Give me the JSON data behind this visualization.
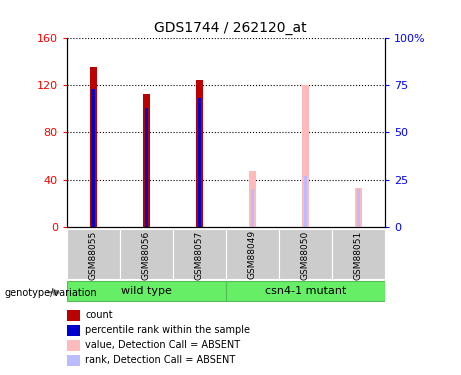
{
  "title": "GDS1744 / 262120_at",
  "categories": [
    "GSM88055",
    "GSM88056",
    "GSM88057",
    "GSM88049",
    "GSM88050",
    "GSM88051"
  ],
  "group1_label": "wild type",
  "group2_label": "csn4-1 mutant",
  "genotype_label": "genotype/variation",
  "count_values": [
    135,
    112,
    124,
    0,
    0,
    0
  ],
  "rank_values": [
    73,
    63,
    68,
    0,
    0,
    0
  ],
  "absent_value": [
    0,
    0,
    0,
    47,
    120,
    33
  ],
  "absent_rank": [
    0,
    0,
    0,
    20,
    27,
    20
  ],
  "ylim_left": [
    0,
    160
  ],
  "ylim_right": [
    0,
    100
  ],
  "yticks_left": [
    0,
    40,
    80,
    120,
    160
  ],
  "yticks_right": [
    0,
    25,
    50,
    75,
    100
  ],
  "yticklabels_right": [
    "0",
    "25",
    "50",
    "75",
    "100%"
  ],
  "color_count": "#bb0000",
  "color_rank": "#0000cc",
  "color_absent_value": "#ffbbbb",
  "color_absent_rank": "#bbbbff",
  "bar_width": 0.12,
  "rank_bar_width": 0.07,
  "bg_label_area": "#cccccc",
  "bg_group": "#66ee66",
  "legend_items": [
    "count",
    "percentile rank within the sample",
    "value, Detection Call = ABSENT",
    "rank, Detection Call = ABSENT"
  ],
  "legend_colors": [
    "#bb0000",
    "#0000cc",
    "#ffbbbb",
    "#bbbbff"
  ]
}
